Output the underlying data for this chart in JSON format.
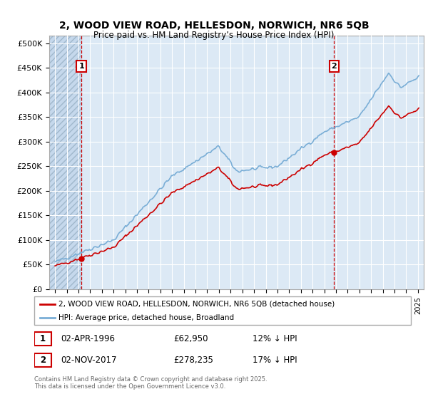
{
  "title": "2, WOOD VIEW ROAD, HELLESDON, NORWICH, NR6 5QB",
  "subtitle": "Price paid vs. HM Land Registry’s House Price Index (HPI)",
  "ylabel_ticks": [
    "£0",
    "£50K",
    "£100K",
    "£150K",
    "£200K",
    "£250K",
    "£300K",
    "£350K",
    "£400K",
    "£450K",
    "£500K"
  ],
  "ytick_values": [
    0,
    50000,
    100000,
    150000,
    200000,
    250000,
    300000,
    350000,
    400000,
    450000,
    500000
  ],
  "xlim": [
    1993.5,
    2025.5
  ],
  "ylim": [
    0,
    515000
  ],
  "sale1_x": 1996.25,
  "sale1_y": 62950,
  "sale2_x": 2017.83,
  "sale2_y": 278235,
  "legend_property_label": "2, WOOD VIEW ROAD, HELLESDON, NORWICH, NR6 5QB (detached house)",
  "legend_hpi_label": "HPI: Average price, detached house, Broadland",
  "table_row1": [
    "1",
    "02-APR-1996",
    "£62,950",
    "12% ↓ HPI"
  ],
  "table_row2": [
    "2",
    "02-NOV-2017",
    "£278,235",
    "17% ↓ HPI"
  ],
  "copyright": "Contains HM Land Registry data © Crown copyright and database right 2025.\nThis data is licensed under the Open Government Licence v3.0.",
  "line_property_color": "#cc0000",
  "line_hpi_color": "#7aaed6",
  "background_color": "#dce9f5",
  "grid_color": "#ffffff",
  "spine_color": "#aaaaaa",
  "ann_box_color": "#cc0000",
  "hatch_region_color": "#c5d8ec"
}
